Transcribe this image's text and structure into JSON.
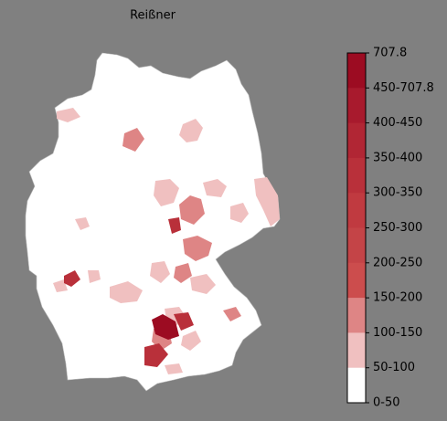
{
  "title": "Reißner",
  "legend": {
    "labels": [
      "707.8",
      "450-707.8",
      "400-450",
      "350-400",
      "300-350",
      "250-300",
      "200-250",
      "150-200",
      "100-150",
      "50-100",
      "0-50"
    ],
    "colors": [
      "#9c0c22",
      "#a81a2d",
      "#b12634",
      "#b9303a",
      "#c03a40",
      "#c44447",
      "#cc4d4d",
      "#de8585",
      "#f0c0c0",
      "#ffffff"
    ]
  }
}
